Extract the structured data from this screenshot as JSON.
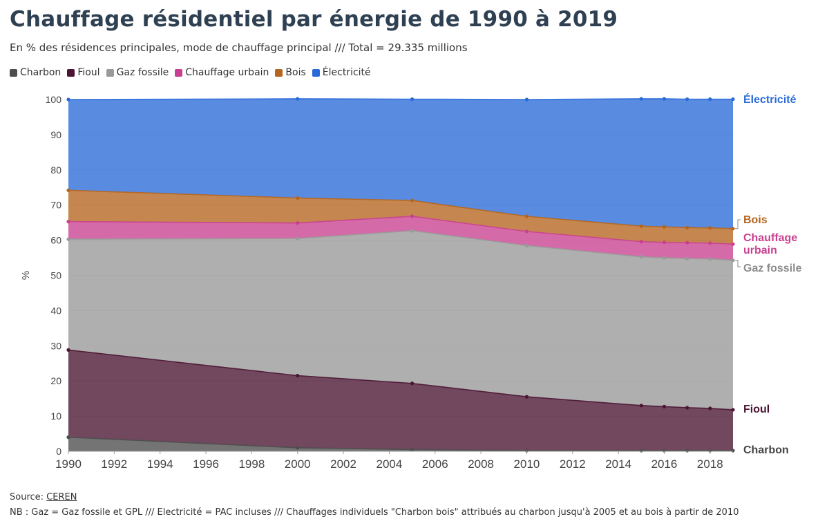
{
  "title": "Chauffage résidentiel par énergie de 1990 à 2019",
  "subtitle": "En % des résidences principales, mode de chauffage principal /// Total = 29.335 millions",
  "source_label": "Source:",
  "source_link": "CEREN",
  "note": "NB : Gaz = Gaz fossile et GPL /// Electricité = PAC incluses /// Chauffages individuels \"Charbon bois\" attribués au charbon jusqu'à 2005 et au bois à partir de 2010",
  "chart_data": {
    "type": "area",
    "stacked": true,
    "x": [
      1990,
      2000,
      2005,
      2010,
      2015,
      2016,
      2017,
      2018,
      2019
    ],
    "xlim": [
      1990,
      2019
    ],
    "xticks": [
      1990,
      1992,
      1994,
      1996,
      1998,
      2000,
      2002,
      2004,
      2006,
      2008,
      2010,
      2012,
      2014,
      2016,
      2018
    ],
    "ylim": [
      0,
      100
    ],
    "yticks": [
      0,
      10,
      20,
      30,
      40,
      50,
      60,
      70,
      80,
      90,
      100
    ],
    "ylabel": "%",
    "xlabel": "",
    "grid": true,
    "legend_position": "top-left",
    "series": [
      {
        "name": "Charbon",
        "color": "#4d4d4d",
        "cumulative": [
          4.0,
          1.0,
          0.5,
          0.2,
          0.2,
          0.2,
          0.2,
          0.2,
          0.2
        ]
      },
      {
        "name": "Fioul",
        "color": "#4a1432",
        "cumulative": [
          28.8,
          21.5,
          19.3,
          15.5,
          13.0,
          12.7,
          12.4,
          12.2,
          11.8
        ]
      },
      {
        "name": "Gaz fossile",
        "color": "#999999",
        "cumulative": [
          60.3,
          60.5,
          62.7,
          58.5,
          55.3,
          55.0,
          54.8,
          54.7,
          54.3
        ]
      },
      {
        "name": "Chauffage urbain",
        "color": "#c9408f",
        "cumulative": [
          65.3,
          64.9,
          66.8,
          62.5,
          59.6,
          59.4,
          59.3,
          59.2,
          58.9
        ]
      },
      {
        "name": "Bois",
        "color": "#b5651d",
        "cumulative": [
          74.2,
          72.0,
          71.3,
          66.8,
          64.0,
          63.8,
          63.6,
          63.5,
          63.3
        ]
      },
      {
        "name": "Électricité",
        "color": "#2a6ad8",
        "cumulative": [
          100,
          100.2,
          100.1,
          100.0,
          100.2,
          100.2,
          100.1,
          100.1,
          100.1
        ]
      }
    ],
    "end_labels": [
      {
        "text": "Électricité",
        "color": "#2a6ad8"
      },
      {
        "text": "Bois",
        "color": "#b5651d"
      },
      {
        "text": "Chauffage urbain",
        "color": "#c9408f"
      },
      {
        "text": "Gaz fossile",
        "color": "#8c8c8c"
      },
      {
        "text": "Fioul",
        "color": "#4a1432"
      },
      {
        "text": "Charbon",
        "color": "#444444"
      }
    ]
  }
}
